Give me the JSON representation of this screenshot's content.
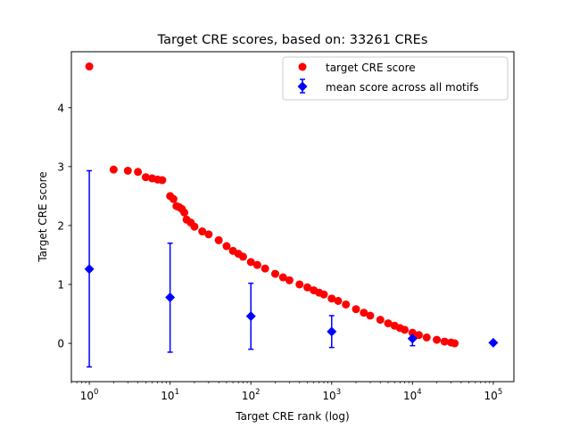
{
  "chart_data": {
    "type": "scatter",
    "title": "Target CRE scores, based on: 33261 CREs",
    "xlabel": "Target CRE rank (log)",
    "ylabel": "Target CRE score",
    "xscale": "log",
    "xlim": [
      0.6,
      180000
    ],
    "ylim": [
      -0.65,
      4.95
    ],
    "grid": false,
    "legend_position": "top-right",
    "y_ticks": [
      0,
      1,
      2,
      3,
      4
    ],
    "x_ticks": [
      {
        "value": 1,
        "base": "10",
        "exp": "0"
      },
      {
        "value": 10,
        "base": "10",
        "exp": "1"
      },
      {
        "value": 100,
        "base": "10",
        "exp": "2"
      },
      {
        "value": 1000,
        "base": "10",
        "exp": "3"
      },
      {
        "value": 10000,
        "base": "10",
        "exp": "4"
      },
      {
        "value": 100000,
        "base": "10",
        "exp": "5"
      }
    ],
    "series": [
      {
        "name": "target CRE score",
        "marker": "circle",
        "color": "#ff0000",
        "x": [
          1,
          2,
          3,
          4,
          5,
          6,
          7,
          8,
          10,
          11,
          12,
          13,
          14,
          15,
          16,
          18,
          20,
          25,
          30,
          40,
          50,
          60,
          70,
          80,
          100,
          120,
          150,
          200,
          250,
          300,
          400,
          500,
          600,
          700,
          800,
          1000,
          1200,
          1500,
          2000,
          2500,
          3000,
          4000,
          5000,
          6000,
          7000,
          8000,
          10000,
          12000,
          15000,
          20000,
          25000,
          30000,
          33261
        ],
        "y": [
          4.7,
          2.95,
          2.93,
          2.91,
          2.82,
          2.8,
          2.78,
          2.77,
          2.5,
          2.45,
          2.33,
          2.31,
          2.28,
          2.22,
          2.1,
          2.05,
          1.98,
          1.9,
          1.85,
          1.75,
          1.65,
          1.57,
          1.52,
          1.47,
          1.38,
          1.33,
          1.27,
          1.18,
          1.12,
          1.07,
          1.0,
          0.95,
          0.9,
          0.86,
          0.83,
          0.76,
          0.72,
          0.66,
          0.58,
          0.52,
          0.47,
          0.4,
          0.34,
          0.3,
          0.26,
          0.23,
          0.18,
          0.14,
          0.1,
          0.06,
          0.03,
          0.015,
          0.0
        ]
      },
      {
        "name": "mean score across all motifs",
        "marker": "diamond",
        "color": "#0000ff",
        "x": [
          1,
          10,
          100,
          1000,
          10000,
          100000
        ],
        "y": [
          1.26,
          0.78,
          0.46,
          0.2,
          0.08,
          0.01
        ],
        "err_low": [
          -0.4,
          -0.15,
          -0.1,
          -0.07,
          -0.04,
          0.01
        ],
        "err_high": [
          2.93,
          1.7,
          1.02,
          0.47,
          0.19,
          0.01
        ]
      }
    ]
  }
}
